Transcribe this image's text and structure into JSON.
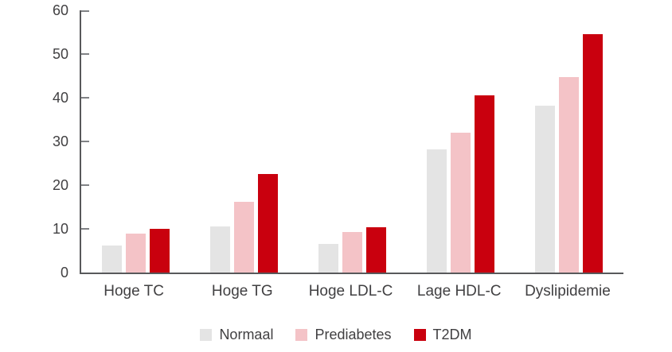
{
  "chart_data": {
    "type": "bar",
    "categories": [
      "Hoge TC",
      "Hoge TG",
      "Hoge LDL-C",
      "Lage HDL-C",
      "Dyslipidemie"
    ],
    "series": [
      {
        "name": "Normaal",
        "color": "#e4e4e4",
        "values": [
          6.2,
          10.5,
          6.6,
          28.2,
          38.2
        ]
      },
      {
        "name": "Prediabetes",
        "color": "#f4c3c7",
        "values": [
          9.0,
          16.2,
          9.2,
          32.0,
          44.8
        ]
      },
      {
        "name": "T2DM",
        "color": "#c9000e",
        "values": [
          10.0,
          22.5,
          10.3,
          40.6,
          54.5
        ]
      }
    ],
    "ylim": [
      0,
      60
    ],
    "yticks": [
      0,
      10,
      20,
      30,
      40,
      50,
      60
    ],
    "grid": false,
    "legend_position": "bottom"
  },
  "colors": {
    "axis": "#58595b",
    "tick_mark": "#808285",
    "text": "#414042",
    "background": "#ffffff"
  }
}
